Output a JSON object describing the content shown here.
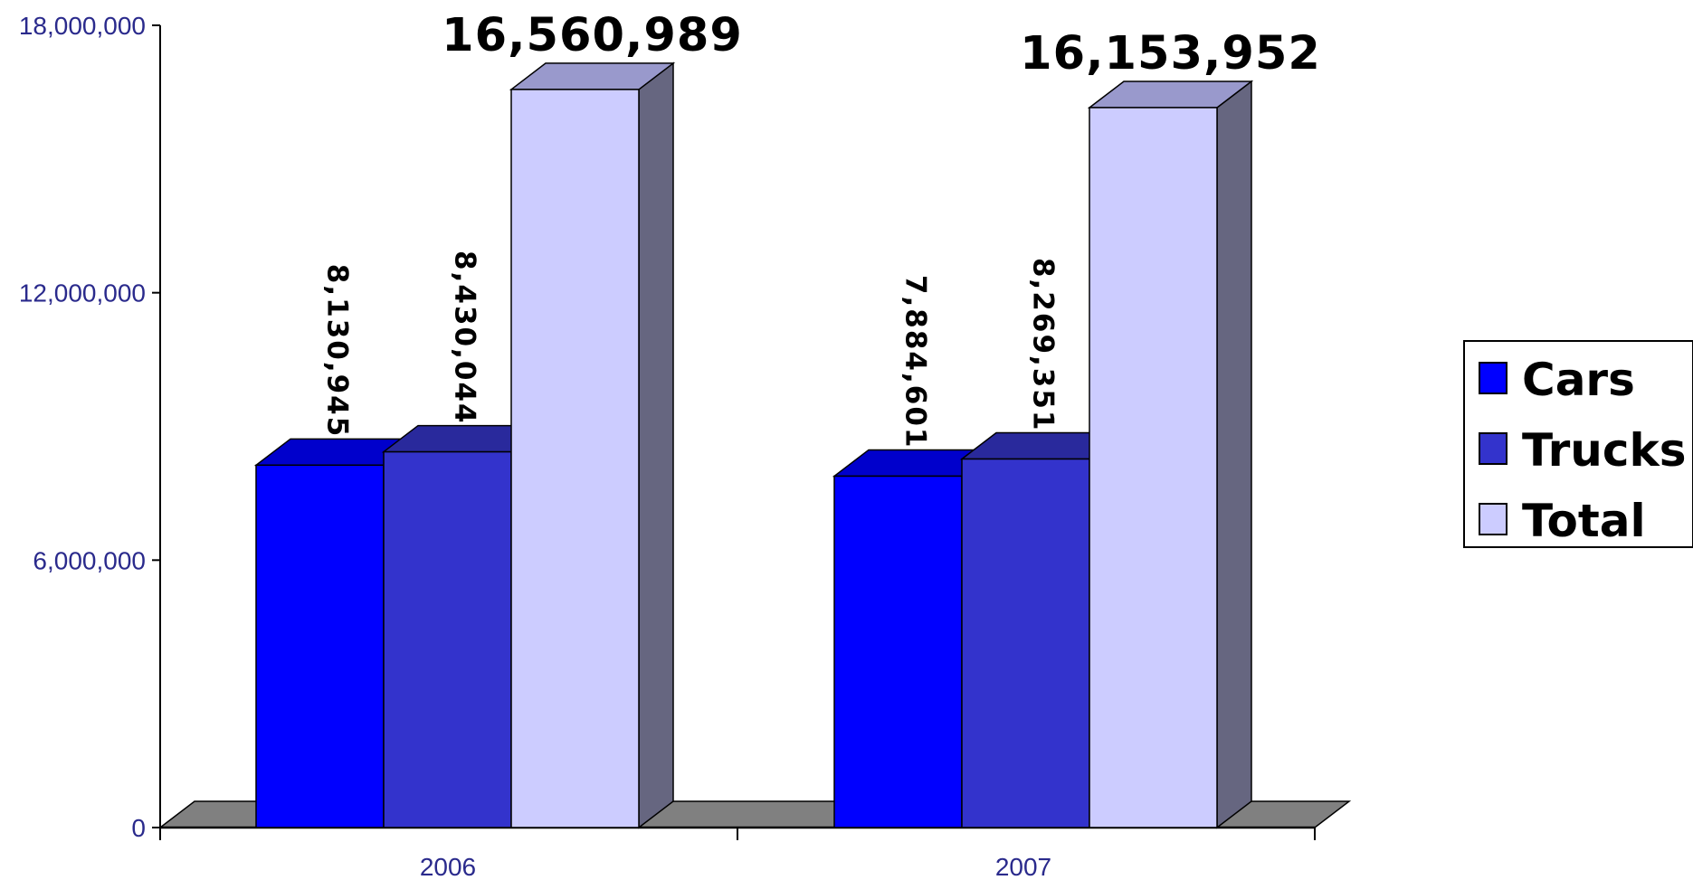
{
  "chart_data": {
    "type": "bar",
    "categories": [
      "2006",
      "2007"
    ],
    "series": [
      {
        "name": "Cars",
        "values": [
          8130945,
          7884601
        ],
        "color": "#0000ff"
      },
      {
        "name": "Trucks",
        "values": [
          8430044,
          8269351
        ],
        "color": "#3333cc"
      },
      {
        "name": "Total",
        "values": [
          16560989,
          16153952
        ],
        "color": "#ccccff"
      }
    ],
    "data_labels": [
      [
        "8,130,945",
        "8,430,044",
        "16,560,989"
      ],
      [
        "7,884,601",
        "8,269,351",
        "16,153,952"
      ]
    ],
    "yticks": [
      0,
      6000000,
      12000000,
      18000000
    ],
    "ytick_labels": [
      "0",
      "6,000,000",
      "12,000,000",
      "18,000,000"
    ],
    "ylim": [
      0,
      18000000
    ],
    "title": "",
    "xlabel": "",
    "ylabel": "",
    "legend_position": "right",
    "style": "3d-clustered-column",
    "side_color": "#666680",
    "floor_color": "#808080"
  }
}
